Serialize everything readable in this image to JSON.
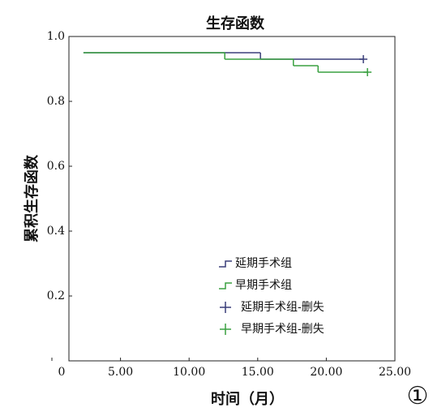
{
  "chart_data": {
    "type": "step",
    "title": "生存函数",
    "x_label": "时间（月）",
    "y_label": "累积生存函数",
    "annotation": "①",
    "xlim": [
      0,
      25
    ],
    "ylim": [
      0,
      1
    ],
    "xticks": [
      0,
      {
        "value": 5,
        "label": "5.00"
      },
      {
        "value": 10,
        "label": "10.00"
      },
      {
        "value": 15,
        "label": "15.00"
      },
      {
        "value": 20,
        "label": "20.00"
      },
      {
        "value": 25,
        "label": "25.00"
      }
    ],
    "yticks": [
      0.2,
      0.4,
      0.6,
      0.8,
      {
        "value": 1,
        "label": "1.0"
      }
    ],
    "series": [
      {
        "name": "延期手术组",
        "color": "#3a3f7a",
        "x": [
          2.3,
          15.2,
          22.7
        ],
        "values": [
          0.95,
          0.93,
          0.93
        ]
      },
      {
        "name": "早期手术组",
        "color": "#3aa040",
        "x": [
          2.3,
          12.6,
          17.6,
          19.4,
          23.0
        ],
        "values": [
          0.95,
          0.93,
          0.91,
          0.89,
          0.89
        ]
      },
      {
        "name": "延期手术组-删失",
        "color": "#3a3f7a",
        "marker": "+",
        "x": [
          22.7
        ],
        "values": [
          0.93
        ]
      },
      {
        "name": "早期手术组-删失",
        "color": "#3aa040",
        "marker": "+",
        "x": [
          23.0
        ],
        "values": [
          0.89
        ]
      }
    ]
  }
}
